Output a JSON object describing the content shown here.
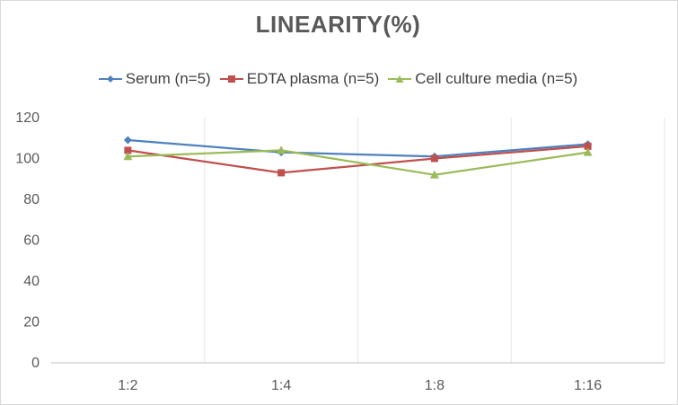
{
  "chart_data": {
    "type": "line",
    "title": "LINEARITY(%)",
    "categories": [
      "1:2",
      "1:4",
      "1:8",
      "1:16"
    ],
    "ylim": [
      0,
      120
    ],
    "yticks": [
      0,
      20,
      40,
      60,
      80,
      100,
      120
    ],
    "grid": "vertical",
    "legend": "top",
    "series": [
      {
        "name": "Serum (n=5)",
        "color": "#4f81bd",
        "marker": "diamond",
        "values": [
          109,
          103,
          101,
          107
        ]
      },
      {
        "name": "EDTA plasma (n=5)",
        "color": "#c0504d",
        "marker": "square",
        "values": [
          104,
          93,
          100,
          106
        ]
      },
      {
        "name": "Cell culture media (n=5)",
        "color": "#9bbb59",
        "marker": "triangle",
        "values": [
          101,
          104,
          92,
          103
        ]
      }
    ]
  }
}
